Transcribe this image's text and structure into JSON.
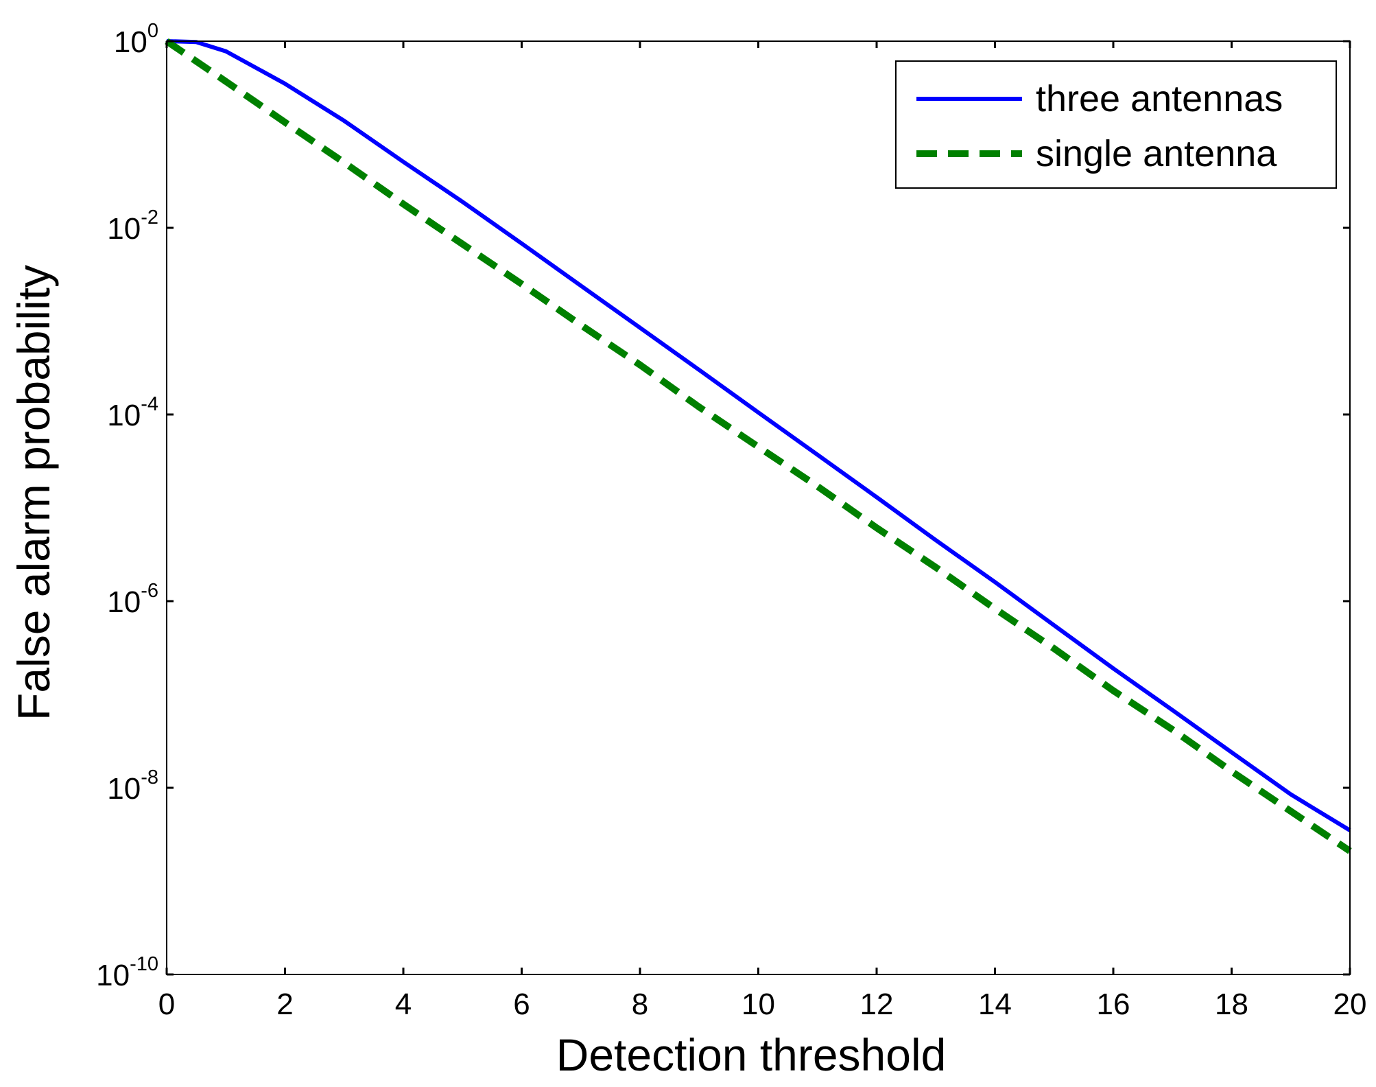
{
  "chart_data": {
    "type": "line",
    "xlabel": "Detection threshold",
    "ylabel": "False alarm probability",
    "xlim": [
      0,
      20
    ],
    "x_ticks": [
      0,
      2,
      4,
      6,
      8,
      10,
      12,
      14,
      16,
      18,
      20
    ],
    "ylim": [
      1e-10,
      1
    ],
    "y_scale": "log",
    "y_ticks": [
      {
        "value": 1,
        "base": "10",
        "exp": "0"
      },
      {
        "value": 0.01,
        "base": "10",
        "exp": "-2"
      },
      {
        "value": 0.0001,
        "base": "10",
        "exp": "-4"
      },
      {
        "value": 1e-06,
        "base": "10",
        "exp": "-6"
      },
      {
        "value": 1e-08,
        "base": "10",
        "exp": "-8"
      },
      {
        "value": 1e-10,
        "base": "10",
        "exp": "-10"
      }
    ],
    "grid": false,
    "legend_position": "top-right",
    "series": [
      {
        "name": "three antennas",
        "color": "#0000ff",
        "line_style": "solid",
        "x": [
          0,
          0.5,
          1,
          2,
          3,
          4,
          5,
          6,
          7,
          8,
          9,
          10,
          11,
          12,
          13,
          14,
          15,
          16,
          17,
          18,
          19,
          20
        ],
        "y": [
          1,
          0.98,
          0.78,
          0.35,
          0.14,
          0.051,
          0.019,
          0.0068,
          0.0024,
          0.00085,
          0.0003,
          0.000105,
          3.7e-05,
          1.3e-05,
          4.5e-06,
          1.6e-06,
          5.5e-07,
          1.9e-07,
          6.8e-08,
          2.4e-08,
          8.5e-09,
          3.5e-09
        ]
      },
      {
        "name": "single antenna",
        "color": "#008000",
        "line_style": "dashed",
        "x": [
          0,
          1,
          2,
          3,
          4,
          5,
          6,
          7,
          8,
          9,
          10,
          11,
          12,
          13,
          14,
          15,
          16,
          17,
          18,
          19,
          20
        ],
        "y": [
          1,
          0.37,
          0.135,
          0.05,
          0.018,
          0.0067,
          0.0025,
          0.00091,
          0.00034,
          0.00012,
          4.5e-05,
          1.7e-05,
          6.1e-06,
          2.3e-06,
          8.3e-07,
          3.1e-07,
          1.1e-07,
          4.2e-08,
          1.5e-08,
          5.6e-09,
          2.1e-09
        ]
      }
    ]
  }
}
